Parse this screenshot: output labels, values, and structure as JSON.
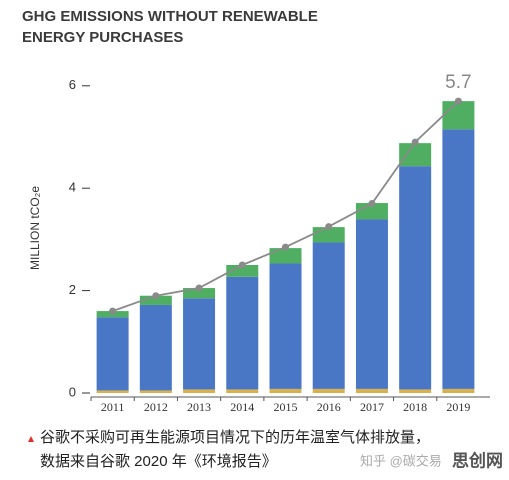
{
  "chart_data": {
    "type": "bar",
    "stacked": true,
    "title_lines": [
      "GHG  EMISSIONS WITHOUT RENEWABLE",
      "ENERGY PURCHASES"
    ],
    "y_label": "MILLION tCO₂e",
    "categories": [
      "2011",
      "2012",
      "2013",
      "2014",
      "2015",
      "2016",
      "2017",
      "2018",
      "2019"
    ],
    "series": [
      {
        "color": "#d8b04c",
        "values": [
          0.05,
          0.05,
          0.07,
          0.07,
          0.08,
          0.08,
          0.08,
          0.07,
          0.08
        ]
      },
      {
        "color": "#4a76c6",
        "values": [
          1.43,
          1.67,
          1.78,
          2.2,
          2.45,
          2.86,
          3.31,
          4.36,
          5.07
        ]
      },
      {
        "color": "#4fae62",
        "values": [
          0.12,
          0.18,
          0.2,
          0.23,
          0.3,
          0.3,
          0.32,
          0.45,
          0.55
        ]
      },
      {
        "type": "line",
        "color": "#8a8a8a",
        "values": [
          1.6,
          1.9,
          2.05,
          2.5,
          2.85,
          3.25,
          3.7,
          4.9,
          5.7
        ],
        "data_labels": "last"
      }
    ],
    "ylim": [
      0,
      6.4
    ],
    "yticks": [
      0,
      2,
      4,
      6
    ],
    "caption_lines": [
      "谷歌不采购可再生能源项目情况下的历年温室气体排放量，",
      "数据来自谷歌 2020 年《环境报告》"
    ],
    "watermarks": [
      "知乎 @碳交易",
      "思创网"
    ]
  }
}
